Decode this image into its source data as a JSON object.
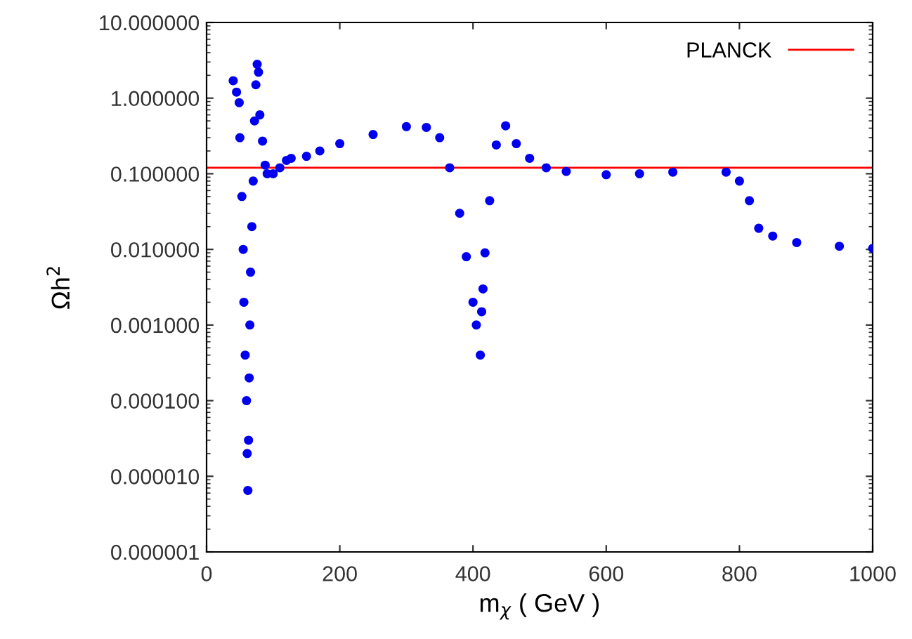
{
  "chart_data": {
    "type": "scatter",
    "xlabel": "m$_{χ}$ ( GeV )",
    "ylabel": "Ωh$^{2}$",
    "log": "y",
    "marker": "circle",
    "grid": false,
    "legend": "top right",
    "xlim": [
      0,
      1000
    ],
    "xticks": [
      0,
      200,
      400,
      600,
      800,
      1000
    ],
    "ylim": [
      1e-06,
      10
    ],
    "yticks": [
      {
        "value": 1e-06,
        "label": "0.000001"
      },
      {
        "value": 1e-05,
        "label": "0.000010"
      },
      {
        "value": 0.0001,
        "label": "0.000100"
      },
      {
        "value": 0.001,
        "label": "0.001000"
      },
      {
        "value": 0.01,
        "label": "0.010000"
      },
      {
        "value": 0.1,
        "label": "0.100000"
      },
      {
        "value": 1,
        "label": "1.000000"
      },
      {
        "value": 10,
        "label": "10.000000"
      }
    ],
    "ref_lines": [
      {
        "axis": "y",
        "value": 0.12,
        "label": "PLANCK",
        "color": "#ff0000"
      }
    ],
    "series": [
      {
        "color": "#0000ee",
        "x": [
          40,
          45,
          49,
          50,
          53,
          55,
          56,
          58,
          60,
          61,
          62,
          63,
          64,
          65,
          66,
          68,
          70,
          72,
          74,
          76,
          78,
          80,
          84,
          88,
          91,
          100,
          110,
          120,
          127,
          150,
          170,
          200,
          250,
          300,
          330,
          350,
          365,
          380,
          390,
          400,
          405,
          411,
          413,
          415,
          418,
          425,
          435,
          449,
          465,
          485,
          510,
          540,
          600,
          650,
          700,
          780,
          800,
          815,
          829,
          850,
          886,
          950,
          1000
        ],
        "values": [
          1.7,
          1.2,
          0.87,
          0.3,
          0.05,
          0.01,
          0.002,
          0.0004,
          0.0001,
          2e-05,
          6.5e-06,
          3e-05,
          0.0002,
          0.001,
          0.005,
          0.02,
          0.08,
          0.5,
          1.5,
          2.8,
          2.2,
          0.6,
          0.27,
          0.13,
          0.1,
          0.1,
          0.12,
          0.15,
          0.16,
          0.17,
          0.2,
          0.25,
          0.33,
          0.42,
          0.41,
          0.3,
          0.12,
          0.03,
          0.008,
          0.002,
          0.001,
          0.0004,
          0.0015,
          0.003,
          0.009,
          0.044,
          0.24,
          0.43,
          0.25,
          0.16,
          0.12,
          0.107,
          0.097,
          0.1,
          0.105,
          0.105,
          0.08,
          0.044,
          0.019,
          0.015,
          0.0123,
          0.011,
          0.0103
        ]
      }
    ]
  }
}
